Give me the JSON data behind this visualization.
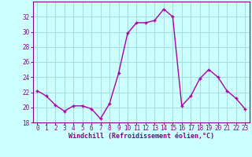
{
  "x": [
    0,
    1,
    2,
    3,
    4,
    5,
    6,
    7,
    8,
    9,
    10,
    11,
    12,
    13,
    14,
    15,
    16,
    17,
    18,
    19,
    20,
    21,
    22,
    23
  ],
  "y": [
    22.2,
    21.5,
    20.3,
    19.5,
    20.2,
    20.2,
    19.8,
    18.5,
    20.5,
    24.5,
    29.8,
    31.2,
    31.2,
    31.5,
    33.0,
    32.0,
    20.2,
    21.5,
    23.8,
    25.0,
    24.0,
    22.2,
    21.2,
    19.8
  ],
  "line_color": "#aa00aa",
  "marker": "+",
  "ylim": [
    18,
    34
  ],
  "xlim": [
    -0.5,
    23.5
  ],
  "yticks": [
    18,
    20,
    22,
    24,
    26,
    28,
    30,
    32
  ],
  "xticks": [
    0,
    1,
    2,
    3,
    4,
    5,
    6,
    7,
    8,
    9,
    10,
    11,
    12,
    13,
    14,
    15,
    16,
    17,
    18,
    19,
    20,
    21,
    22,
    23
  ],
  "xlabel": "Windchill (Refroidissement éolien,°C)",
  "background_color": "#ccffff",
  "grid_color": "#aadddd",
  "tick_color": "#880088",
  "label_color": "#880088",
  "spine_color": "#880088",
  "font": "monospace",
  "tick_fontsize": 5.5,
  "xlabel_fontsize": 6.0,
  "linewidth": 1.0,
  "markersize": 3.5
}
